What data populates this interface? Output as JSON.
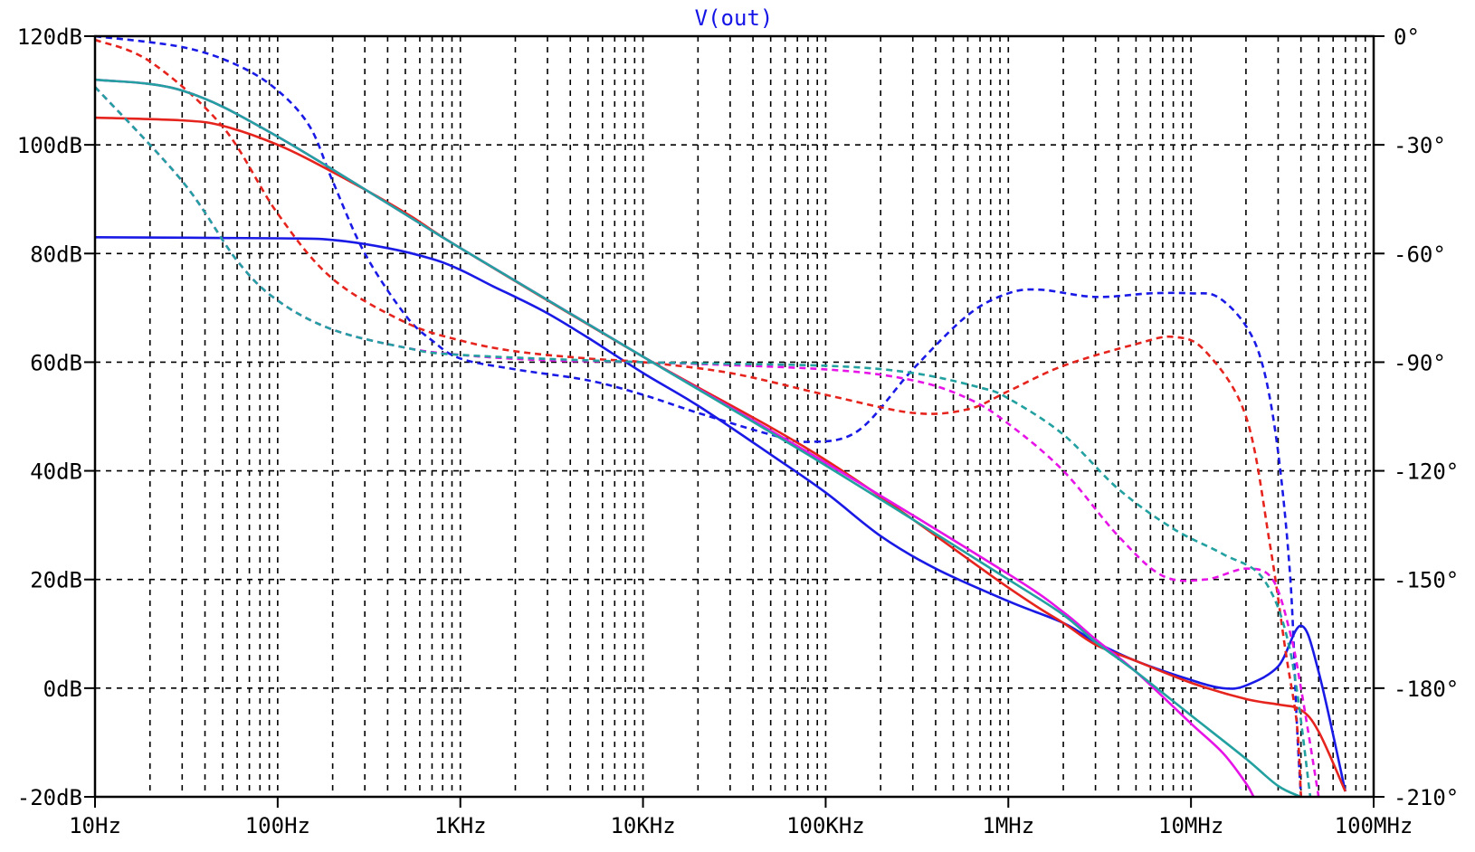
{
  "chart_data": {
    "type": "line",
    "title": "V(out)",
    "title_color": "#1414e6",
    "xscale": "log",
    "xlim": [
      10,
      100000000
    ],
    "ylim": [
      -20,
      120
    ],
    "y2lim": [
      -210,
      0
    ],
    "grid": true,
    "x_tick_labels": [
      "10Hz",
      "100Hz",
      "1KHz",
      "10KHz",
      "100KHz",
      "1MHz",
      "10MHz",
      "100MHz"
    ],
    "y_tick_labels": [
      "120dB",
      "100dB",
      "80dB",
      "60dB",
      "40dB",
      "20dB",
      "0dB",
      "-20dB"
    ],
    "y2_tick_labels": [
      "0°",
      "-30°",
      "-60°",
      "-90°",
      "-120°",
      "-150°",
      "-180°",
      "-210°"
    ],
    "series": [
      {
        "color": "#1a1ae6",
        "style": "solid",
        "axis": "left",
        "points": [
          [
            10,
            83
          ],
          [
            100,
            82.8
          ],
          [
            200,
            82.5
          ],
          [
            400,
            81
          ],
          [
            700,
            79
          ],
          [
            1000,
            77
          ],
          [
            1500,
            74
          ],
          [
            2000,
            72
          ],
          [
            3000,
            69
          ],
          [
            5000,
            64.5
          ],
          [
            10000,
            58
          ],
          [
            20000,
            52
          ],
          [
            50000,
            43
          ],
          [
            100000,
            36
          ],
          [
            200000,
            28
          ],
          [
            400000,
            22
          ],
          [
            1000000,
            16
          ],
          [
            2000000,
            12
          ],
          [
            3000000,
            8.5
          ],
          [
            5000000,
            5
          ],
          [
            10000000,
            1.5
          ],
          [
            15000000,
            0
          ],
          [
            20000000,
            0.5
          ],
          [
            30000000,
            4
          ],
          [
            40000000,
            11.5
          ],
          [
            50000000,
            3
          ],
          [
            70000000,
            -19
          ]
        ]
      },
      {
        "color": "#1a1ae6",
        "style": "dashed",
        "axis": "right",
        "points": [
          [
            10,
            0
          ],
          [
            30,
            -3
          ],
          [
            60,
            -8
          ],
          [
            100,
            -15
          ],
          [
            150,
            -25
          ],
          [
            200,
            -40
          ],
          [
            300,
            -60
          ],
          [
            500,
            -77
          ],
          [
            700,
            -84
          ],
          [
            1000,
            -89
          ],
          [
            2000,
            -92
          ],
          [
            5000,
            -95
          ],
          [
            10000,
            -99
          ],
          [
            20000,
            -104
          ],
          [
            50000,
            -110
          ],
          [
            80000,
            -112
          ],
          [
            150000,
            -109
          ],
          [
            300000,
            -92
          ],
          [
            600000,
            -77
          ],
          [
            1000000,
            -71
          ],
          [
            1500000,
            -70
          ],
          [
            3000000,
            -72
          ],
          [
            6000000,
            -71
          ],
          [
            10000000,
            -71
          ],
          [
            14000000,
            -72
          ],
          [
            20000000,
            -80
          ],
          [
            25000000,
            -92
          ],
          [
            30000000,
            -115
          ],
          [
            35000000,
            -150
          ],
          [
            38000000,
            -190
          ],
          [
            40000000,
            -210
          ]
        ]
      },
      {
        "color": "#e6241e",
        "style": "solid",
        "axis": "left",
        "points": [
          [
            10,
            105
          ],
          [
            30,
            104.5
          ],
          [
            50,
            103.5
          ],
          [
            100,
            100
          ],
          [
            200,
            95
          ],
          [
            500,
            87.5
          ],
          [
            1000,
            81
          ],
          [
            10000,
            61
          ],
          [
            100000,
            42
          ],
          [
            1000000,
            18.5
          ],
          [
            2000000,
            12
          ],
          [
            3000000,
            8
          ],
          [
            5000000,
            5
          ],
          [
            10000000,
            1
          ],
          [
            20000000,
            -2
          ],
          [
            30000000,
            -3
          ],
          [
            40000000,
            -4
          ],
          [
            50000000,
            -8
          ],
          [
            70000000,
            -19
          ]
        ]
      },
      {
        "color": "#e6241e",
        "style": "dashed",
        "axis": "right",
        "points": [
          [
            10,
            -1
          ],
          [
            20,
            -7
          ],
          [
            50,
            -25
          ],
          [
            100,
            -49
          ],
          [
            200,
            -67
          ],
          [
            500,
            -79
          ],
          [
            1000,
            -84
          ],
          [
            2000,
            -87
          ],
          [
            5000,
            -89
          ],
          [
            10000,
            -90
          ],
          [
            30000,
            -93
          ],
          [
            100000,
            -99
          ],
          [
            300000,
            -104
          ],
          [
            600000,
            -103
          ],
          [
            1000000,
            -98
          ],
          [
            2000000,
            -91
          ],
          [
            5000000,
            -85
          ],
          [
            8000000,
            -83
          ],
          [
            12000000,
            -87
          ],
          [
            20000000,
            -105
          ],
          [
            27000000,
            -140
          ],
          [
            33000000,
            -170
          ],
          [
            38000000,
            -190
          ],
          [
            40000000,
            -210
          ]
        ]
      },
      {
        "color": "#e614e6",
        "style": "solid",
        "axis": "left",
        "points": [
          [
            10,
            112
          ],
          [
            30,
            110
          ],
          [
            100,
            101.5
          ],
          [
            1000,
            81
          ],
          [
            10000,
            61
          ],
          [
            100000,
            41.5
          ],
          [
            1000000,
            21
          ],
          [
            2000000,
            14
          ],
          [
            3000000,
            9
          ],
          [
            5000000,
            3
          ],
          [
            10000000,
            -6.5
          ],
          [
            15000000,
            -12
          ],
          [
            20000000,
            -17.5
          ],
          [
            22000000,
            -20
          ]
        ]
      },
      {
        "color": "#e614e6",
        "style": "dashed",
        "axis": "right",
        "points": [
          [
            10,
            -14
          ],
          [
            30,
            -40
          ],
          [
            60,
            -62
          ],
          [
            100,
            -73
          ],
          [
            200,
            -81
          ],
          [
            500,
            -86
          ],
          [
            1000,
            -88
          ],
          [
            3000,
            -89.5
          ],
          [
            10000,
            -90
          ],
          [
            100000,
            -92
          ],
          [
            300000,
            -95
          ],
          [
            600000,
            -100
          ],
          [
            1000000,
            -107
          ],
          [
            2000000,
            -120
          ],
          [
            4000000,
            -138
          ],
          [
            7000000,
            -149
          ],
          [
            12000000,
            -150
          ],
          [
            20000000,
            -147
          ],
          [
            28000000,
            -150
          ],
          [
            35000000,
            -165
          ],
          [
            40000000,
            -180
          ],
          [
            50000000,
            -210
          ]
        ]
      },
      {
        "color": "#23a0a0",
        "style": "solid",
        "axis": "left",
        "points": [
          [
            10,
            112
          ],
          [
            30,
            110
          ],
          [
            100,
            101.5
          ],
          [
            1000,
            81
          ],
          [
            10000,
            61
          ],
          [
            100000,
            41
          ],
          [
            1000000,
            20
          ],
          [
            2000000,
            13.5
          ],
          [
            3000000,
            8.5
          ],
          [
            5000000,
            3
          ],
          [
            10000000,
            -5
          ],
          [
            20000000,
            -13
          ],
          [
            30000000,
            -18
          ],
          [
            40000000,
            -20
          ]
        ]
      },
      {
        "color": "#23a0a0",
        "style": "dashed",
        "axis": "right",
        "points": [
          [
            10,
            -14
          ],
          [
            30,
            -40
          ],
          [
            60,
            -62
          ],
          [
            100,
            -73
          ],
          [
            200,
            -81
          ],
          [
            500,
            -86
          ],
          [
            1000,
            -88
          ],
          [
            10000,
            -90
          ],
          [
            100000,
            -91
          ],
          [
            300000,
            -93
          ],
          [
            700000,
            -97
          ],
          [
            1000000,
            -100
          ],
          [
            2000000,
            -110
          ],
          [
            4000000,
            -125
          ],
          [
            8000000,
            -136
          ],
          [
            15000000,
            -143
          ],
          [
            25000000,
            -150
          ],
          [
            35000000,
            -170
          ],
          [
            45000000,
            -210
          ]
        ]
      }
    ]
  }
}
